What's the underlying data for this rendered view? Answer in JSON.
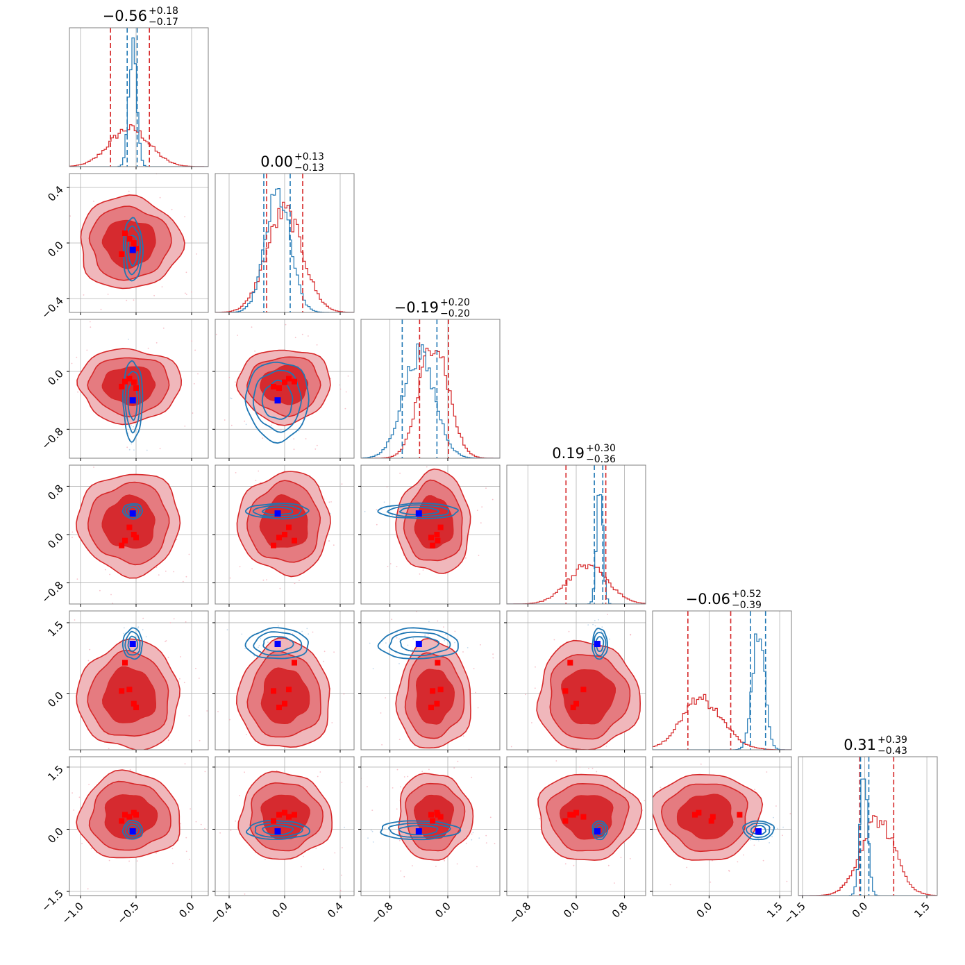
{
  "chart_data": {
    "type": "corner",
    "parameters": 6,
    "colors": {
      "red": "#d62728",
      "blue": "#1f77b4",
      "red_marker": "#ff0000",
      "blue_marker": "#0000ff"
    },
    "titles": [
      {
        "median": "−0.56",
        "plus": "+0.18",
        "minus": "−0.17"
      },
      {
        "median": "0.00",
        "plus": "+0.13",
        "minus": "−0.13"
      },
      {
        "median": "−0.19",
        "plus": "+0.20",
        "minus": "−0.20"
      },
      {
        "median": "0.19",
        "plus": "+0.30",
        "minus": "−0.36"
      },
      {
        "median": "−0.06",
        "plus": "+0.52",
        "minus": "−0.39"
      },
      {
        "median": "0.31",
        "plus": "+0.39",
        "minus": "−0.43"
      }
    ],
    "ranges": [
      [
        -1.1,
        0.15
      ],
      [
        -0.5,
        0.5
      ],
      [
        -1.2,
        0.72
      ],
      [
        -1.15,
        1.15
      ],
      [
        -1.2,
        1.75
      ],
      [
        -1.6,
        1.75
      ]
    ],
    "x_ticks": [
      [
        {
          "v": -1.0,
          "label": "−1.0"
        },
        {
          "v": -0.5,
          "label": "−0.5"
        },
        {
          "v": 0.0,
          "label": "0.0"
        }
      ],
      [
        {
          "v": -0.4,
          "label": "−0.4"
        },
        {
          "v": 0.0,
          "label": "0.0"
        },
        {
          "v": 0.4,
          "label": "0.4"
        }
      ],
      [
        {
          "v": -0.8,
          "label": "−0.8"
        },
        {
          "v": 0.0,
          "label": "0.0"
        }
      ],
      [
        {
          "v": -0.8,
          "label": "−0.8"
        },
        {
          "v": 0.0,
          "label": "0.0"
        },
        {
          "v": 0.8,
          "label": "0.8"
        }
      ],
      [
        {
          "v": 0.0,
          "label": "0.0"
        },
        {
          "v": 1.5,
          "label": "1.5"
        }
      ],
      [
        {
          "v": -1.5,
          "label": "−1.5"
        },
        {
          "v": 0.0,
          "label": "0.0"
        },
        {
          "v": 1.5,
          "label": "1.5"
        }
      ]
    ],
    "y_ticks": [
      [],
      [
        {
          "v": 0.4,
          "label": "0.4"
        },
        {
          "v": 0.0,
          "label": "0.0"
        },
        {
          "v": -0.4,
          "label": "−0.4"
        }
      ],
      [
        {
          "v": 0.0,
          "label": "0.0"
        },
        {
          "v": -0.8,
          "label": "−0.8"
        }
      ],
      [
        {
          "v": 0.8,
          "label": "0.8"
        },
        {
          "v": 0.0,
          "label": "0.0"
        },
        {
          "v": -0.8,
          "label": "−0.8"
        }
      ],
      [
        {
          "v": 1.5,
          "label": "1.5"
        },
        {
          "v": 0.0,
          "label": "0.0"
        }
      ],
      [
        {
          "v": 1.5,
          "label": "1.5"
        },
        {
          "v": 0.0,
          "label": "0.0"
        },
        {
          "v": -1.5,
          "label": "−1.5"
        }
      ]
    ],
    "red_posterior": {
      "center": [
        -0.56,
        0.0,
        -0.19,
        0.19,
        -0.06,
        0.31
      ],
      "sigma": [
        0.18,
        0.13,
        0.2,
        0.33,
        0.45,
        0.41
      ],
      "quantiles": [
        [
          -0.73,
          -0.38
        ],
        [
          -0.13,
          0.13
        ],
        [
          -0.39,
          0.01
        ],
        [
          -0.17,
          0.49
        ],
        [
          -0.45,
          0.46
        ],
        [
          -0.12,
          0.7
        ]
      ]
    },
    "blue_posterior": {
      "center": [
        -0.53,
        -0.05,
        -0.4,
        0.39,
        1.05,
        -0.02
      ],
      "sigma": [
        0.035,
        0.09,
        0.22,
        0.05,
        0.13,
        0.09
      ],
      "quantiles": [
        [
          -0.58,
          -0.49
        ],
        [
          -0.15,
          0.04
        ],
        [
          -0.63,
          -0.15
        ],
        [
          0.3,
          0.44
        ],
        [
          0.88,
          1.2
        ],
        [
          -0.1,
          0.1
        ]
      ]
    },
    "truth_blue": [
      -0.53,
      -0.05,
      -0.4,
      0.35,
      1.05,
      -0.05
    ],
    "truth_red": [
      [
        -0.6,
        0.07,
        -0.14,
        -0.1,
        0.65,
        0.35
      ],
      [
        -0.56,
        0.03,
        -0.1,
        0.12,
        0.08,
        0.3
      ],
      [
        -0.5,
        -0.04,
        -0.23,
        -0.05,
        -0.3,
        0.35
      ],
      [
        -0.63,
        -0.08,
        -0.21,
        -0.18,
        0.05,
        0.2
      ],
      [
        -0.52,
        0.0,
        -0.15,
        0.0,
        -0.22,
        0.4
      ]
    ]
  }
}
